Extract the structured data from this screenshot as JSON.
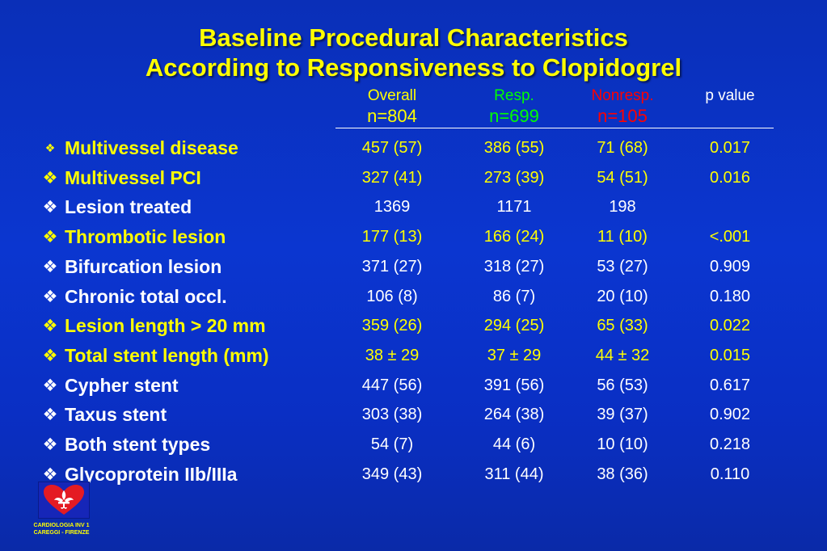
{
  "title": {
    "line1": "Baseline Procedural Characteristics",
    "line2": "According to Responsiveness to Clopidogrel"
  },
  "colors": {
    "background": "#0b36d0",
    "title": "#ffff00",
    "overall": "#ffff00",
    "resp": "#00ff00",
    "nonresp": "#ff0000",
    "pvalue": "#ffffff"
  },
  "columns": [
    {
      "label": "Overall",
      "n": "n=804",
      "color": "#ffff00"
    },
    {
      "label": "Resp.",
      "n": "n=699",
      "color": "#00ff00"
    },
    {
      "label": "Nonresp.",
      "n": "n=105",
      "color": "#ff0000"
    },
    {
      "label": "p value",
      "n": "",
      "color": "#ffffff"
    }
  ],
  "bullet": "❖",
  "rows": [
    {
      "label": "Multivessel disease",
      "overall": "457 (57)",
      "resp": "386 (55)",
      "nonresp": "71 (68)",
      "p": "0.017",
      "highlight": true
    },
    {
      "label": "Multivessel PCI",
      "overall": "327 (41)",
      "resp": "273 (39)",
      "nonresp": "54 (51)",
      "p": "0.016",
      "highlight": true
    },
    {
      "label": "Lesion treated",
      "overall": "1369",
      "resp": "1171",
      "nonresp": "198",
      "p": "",
      "highlight": false
    },
    {
      "label": "Thrombotic lesion",
      "overall": "177 (13)",
      "resp": "166 (24)",
      "nonresp": "11 (10)",
      "p": "<.001",
      "highlight": true
    },
    {
      "label": "Bifurcation lesion",
      "overall": "371 (27)",
      "resp": "318 (27)",
      "nonresp": "53 (27)",
      "p": "0.909",
      "highlight": false
    },
    {
      "label": "Chronic total occl.",
      "overall": "106 (8)",
      "resp": "86 (7)",
      "nonresp": "20 (10)",
      "p": "0.180",
      "highlight": false
    },
    {
      "label": "Lesion length > 20 mm",
      "overall": "359 (26)",
      "resp": "294 (25)",
      "nonresp": "65 (33)",
      "p": "0.022",
      "highlight": true
    },
    {
      "label": "Total stent length (mm)",
      "overall": "38 ± 29",
      "resp": "37 ± 29",
      "nonresp": "44 ± 32",
      "p": "0.015",
      "highlight": true
    },
    {
      "label": "Cypher stent",
      "overall": "447 (56)",
      "resp": "391 (56)",
      "nonresp": "56 (53)",
      "p": "0.617",
      "highlight": false
    },
    {
      "label": "Taxus  stent",
      "overall": "303 (38)",
      "resp": "264 (38)",
      "nonresp": "39 (37)",
      "p": "0.902",
      "highlight": false
    },
    {
      "label": "Both stent types",
      "overall": "54 (7)",
      "resp": "44 (6)",
      "nonresp": "10 (10)",
      "p": "0.218",
      "highlight": false
    },
    {
      "label": "Glycoprotein IIb/IIIa",
      "overall": "349 (43)",
      "resp": "311 (44)",
      "nonresp": "38 (36)",
      "p": "0.110",
      "highlight": false
    }
  ],
  "logo": {
    "line1": "CARDIOLOGIA INV 1",
    "line2": "CAREGGI - FIRENZE"
  }
}
